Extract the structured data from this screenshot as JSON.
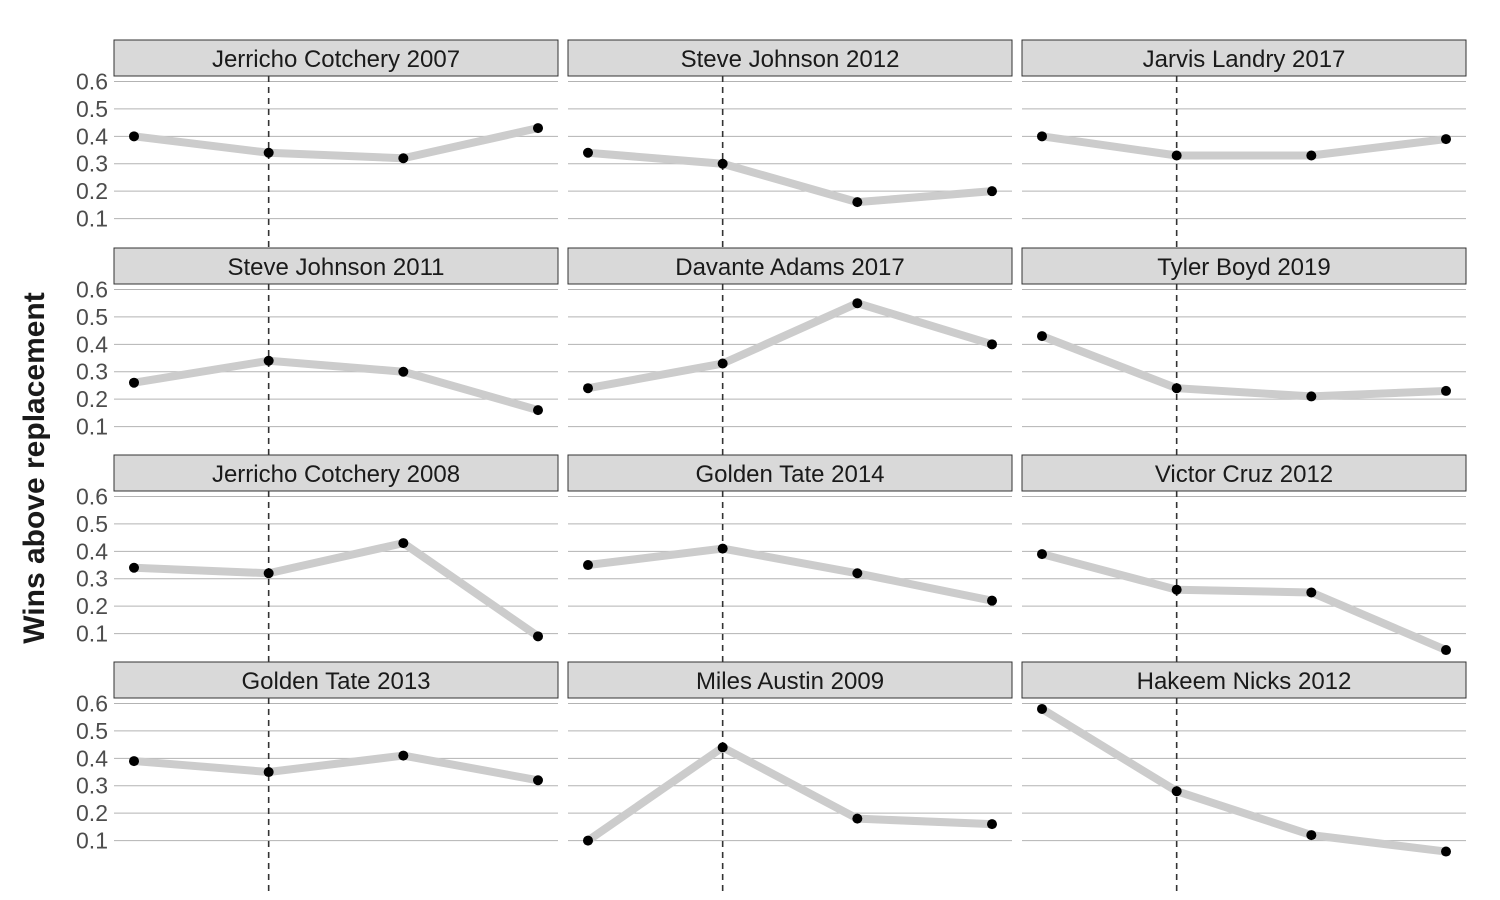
{
  "chart_data": {
    "type": "line",
    "ylabel": "Wins above replacement",
    "xlabel": "",
    "ylim": [
      0.0,
      0.62
    ],
    "yticks": [
      0.1,
      0.2,
      0.3,
      0.4,
      0.5,
      0.6
    ],
    "ytick_labels": [
      "0.1",
      "0.2",
      "0.3",
      "0.4",
      "0.5",
      "0.6"
    ],
    "x": [
      1,
      2,
      3,
      4
    ],
    "vline_x": 2,
    "grid": "horizontal major",
    "colors": {
      "line": "#cccccc",
      "point": "#000000",
      "strip": "#d9d9d9",
      "grid": "#b3b3b3",
      "vline": "#333333"
    },
    "panels": [
      {
        "title": "Jerricho Cotchery 2007",
        "values": [
          0.4,
          0.34,
          0.32,
          0.43
        ]
      },
      {
        "title": "Steve Johnson 2012",
        "values": [
          0.34,
          0.3,
          0.16,
          0.2
        ]
      },
      {
        "title": "Jarvis Landry 2017",
        "values": [
          0.4,
          0.33,
          0.33,
          0.39
        ]
      },
      {
        "title": "Steve Johnson 2011",
        "values": [
          0.26,
          0.34,
          0.3,
          0.16
        ]
      },
      {
        "title": "Davante Adams 2017",
        "values": [
          0.24,
          0.33,
          0.55,
          0.4
        ]
      },
      {
        "title": "Tyler Boyd 2019",
        "values": [
          0.43,
          0.24,
          0.21,
          0.23
        ]
      },
      {
        "title": "Jerricho Cotchery 2008",
        "values": [
          0.34,
          0.32,
          0.43,
          0.09
        ]
      },
      {
        "title": "Golden Tate 2014",
        "values": [
          0.35,
          0.41,
          0.32,
          0.22
        ]
      },
      {
        "title": "Victor Cruz 2012",
        "values": [
          0.39,
          0.26,
          0.25,
          0.04
        ]
      },
      {
        "title": "Golden Tate 2013",
        "values": [
          0.39,
          0.35,
          0.41,
          0.32
        ]
      },
      {
        "title": "Miles Austin 2009",
        "values": [
          0.1,
          0.44,
          0.18,
          0.16
        ]
      },
      {
        "title": "Hakeem Nicks 2012",
        "values": [
          0.58,
          0.28,
          0.12,
          0.06
        ]
      }
    ]
  }
}
